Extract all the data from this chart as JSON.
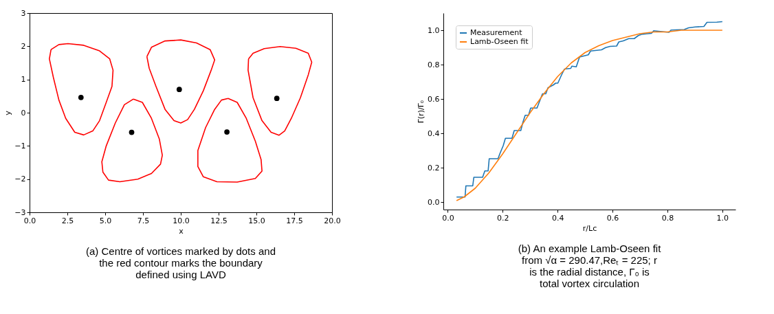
{
  "chart_data": [
    {
      "type": "scatter",
      "xlabel": "x",
      "ylabel": "y",
      "xlim": [
        0,
        20
      ],
      "ylim": [
        -3,
        3
      ],
      "xticks": [
        {
          "value": 0,
          "label": "0.0"
        },
        {
          "value": 2.5,
          "label": "2.5"
        },
        {
          "value": 5,
          "label": "5.0"
        },
        {
          "value": 7.5,
          "label": "7.5"
        },
        {
          "value": 10,
          "label": "10.0"
        },
        {
          "value": 12.5,
          "label": "12.5"
        },
        {
          "value": 15,
          "label": "15.0"
        },
        {
          "value": 17.5,
          "label": "17.5"
        },
        {
          "value": 20,
          "label": "20.0"
        }
      ],
      "yticks": [
        {
          "value": -3,
          "label": "−3"
        },
        {
          "value": -2,
          "label": "−2"
        },
        {
          "value": -1,
          "label": "−1"
        },
        0,
        1,
        2,
        3
      ],
      "grid": false,
      "legend": false,
      "marker": "circle",
      "series": [
        {
          "color": "#000000",
          "x": [
            3.4,
            6.75,
            9.9,
            13.05,
            16.35
          ],
          "values": [
            0.46,
            -0.59,
            0.7,
            -0.58,
            0.43
          ]
        }
      ],
      "annotations": [
        "(a) Centre of vortices marked by dots and the red contour marks the boundary defined using LAVD"
      ]
    },
    {
      "type": "line",
      "xlabel": "r/Lc",
      "ylabel": "Γ(r)/Γₒ",
      "xlim": [
        -0.016,
        1.048
      ],
      "ylim": [
        -0.044,
        1.1
      ],
      "xticks": [
        {
          "value": 0,
          "label": "0.0"
        },
        {
          "value": 0.2,
          "label": "0.2"
        },
        {
          "value": 0.4,
          "label": "0.4"
        },
        {
          "value": 0.6,
          "label": "0.6"
        },
        {
          "value": 0.8,
          "label": "0.8"
        },
        {
          "value": 1,
          "label": "1.0"
        }
      ],
      "yticks": [
        {
          "value": 0,
          "label": "0.0"
        },
        {
          "value": 0.2,
          "label": "0.2"
        },
        {
          "value": 0.4,
          "label": "0.4"
        },
        {
          "value": 0.6,
          "label": "0.6"
        },
        {
          "value": 0.8,
          "label": "0.8"
        },
        {
          "value": 1,
          "label": "1.0"
        }
      ],
      "grid": false,
      "legend": "top left",
      "series": [
        {
          "name": "Measurement",
          "color": "#1f77b4",
          "x": [
            0.032,
            0.063,
            0.066,
            0.091,
            0.095,
            0.127,
            0.135,
            0.147,
            0.151,
            0.183,
            0.19,
            0.202,
            0.21,
            0.234,
            0.242,
            0.266,
            0.274,
            0.282,
            0.294,
            0.302,
            0.325,
            0.345,
            0.357,
            0.365,
            0.385,
            0.393,
            0.401,
            0.413,
            0.425,
            0.448,
            0.452,
            0.468,
            0.48,
            0.512,
            0.52,
            0.56,
            0.575,
            0.591,
            0.615,
            0.623,
            0.639,
            0.659,
            0.679,
            0.694,
            0.706,
            0.742,
            0.75,
            0.774,
            0.806,
            0.813,
            0.861,
            0.877,
            0.901,
            0.933,
            0.944,
            0.98,
            1.0
          ],
          "values": [
            0.029,
            0.029,
            0.094,
            0.094,
            0.144,
            0.144,
            0.181,
            0.181,
            0.252,
            0.252,
            0.282,
            0.328,
            0.371,
            0.371,
            0.416,
            0.416,
            0.466,
            0.505,
            0.505,
            0.547,
            0.547,
            0.63,
            0.63,
            0.665,
            0.682,
            0.692,
            0.692,
            0.735,
            0.774,
            0.778,
            0.791,
            0.787,
            0.844,
            0.857,
            0.879,
            0.886,
            0.899,
            0.906,
            0.908,
            0.932,
            0.938,
            0.951,
            0.951,
            0.969,
            0.976,
            0.982,
            0.997,
            0.993,
            0.988,
            1.001,
            1.004,
            1.014,
            1.019,
            1.022,
            1.046,
            1.047,
            1.05
          ]
        },
        {
          "name": "Lamb-Oseen fit",
          "color": "#ff7f0e",
          "x": [
            0.032,
            0.06,
            0.1,
            0.15,
            0.2,
            0.25,
            0.3,
            0.35,
            0.4,
            0.45,
            0.5,
            0.55,
            0.6,
            0.65,
            0.7,
            0.75,
            0.8,
            0.85,
            0.9,
            0.95,
            1.0
          ],
          "values": [
            0.008,
            0.03,
            0.08,
            0.17,
            0.28,
            0.4,
            0.52,
            0.63,
            0.73,
            0.81,
            0.87,
            0.91,
            0.94,
            0.96,
            0.98,
            0.99,
            0.99,
            1.0,
            1.0,
            1.0,
            1.0
          ]
        }
      ],
      "annotations": [
        "(b) An example Lamb-Oseen fit from √α = 290.47,Reₜ = 225; r is the radial distance, Γ₀ is total vortex circulation"
      ]
    }
  ]
}
